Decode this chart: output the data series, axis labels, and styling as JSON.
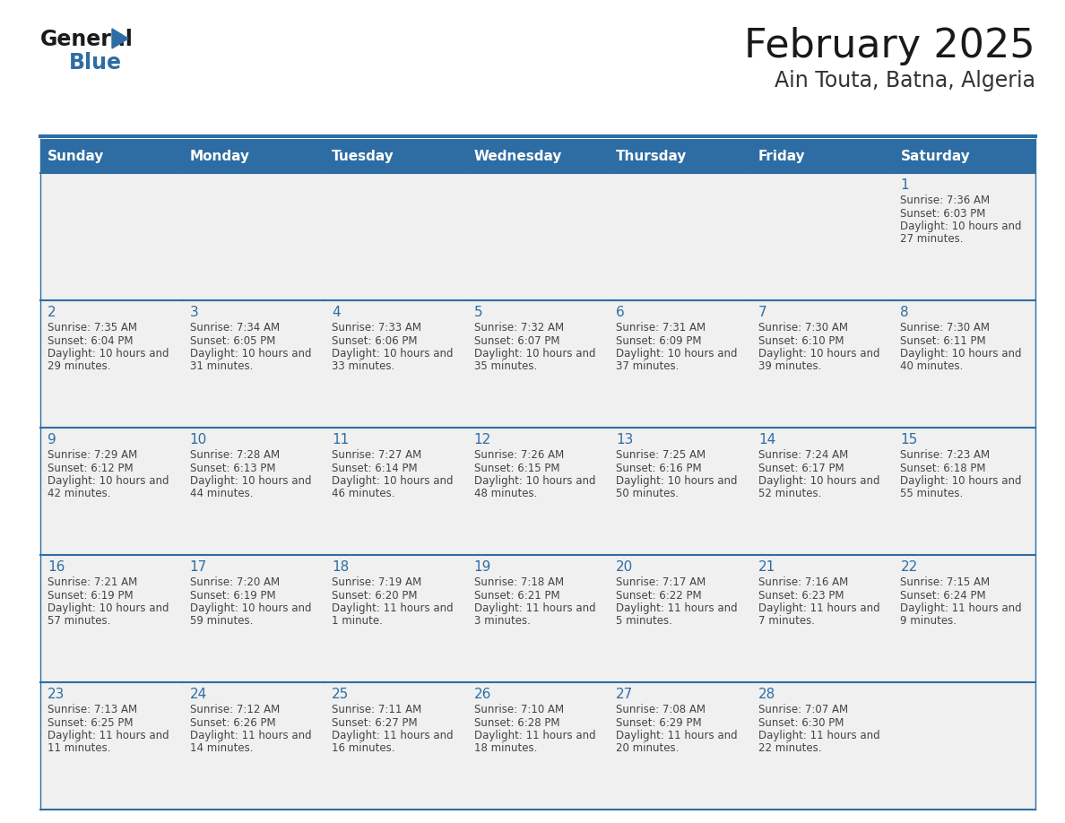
{
  "title": "February 2025",
  "subtitle": "Ain Touta, Batna, Algeria",
  "days_of_week": [
    "Sunday",
    "Monday",
    "Tuesday",
    "Wednesday",
    "Thursday",
    "Friday",
    "Saturday"
  ],
  "header_bg": "#2E6DA4",
  "header_text_color": "#FFFFFF",
  "cell_bg": "#F0F0F0",
  "border_color": "#2E6DA4",
  "title_color": "#1a1a1a",
  "subtitle_color": "#333333",
  "day_number_color": "#2E6DA4",
  "cell_text_color": "#444444",
  "logo_general_color": "#1a1a1a",
  "logo_blue_color": "#2E6DA4",
  "calendar_data": [
    [
      null,
      null,
      null,
      null,
      null,
      null,
      {
        "day": 1,
        "sunrise": "7:36 AM",
        "sunset": "6:03 PM",
        "daylight": "10 hours and 27 minutes."
      }
    ],
    [
      {
        "day": 2,
        "sunrise": "7:35 AM",
        "sunset": "6:04 PM",
        "daylight": "10 hours and 29 minutes."
      },
      {
        "day": 3,
        "sunrise": "7:34 AM",
        "sunset": "6:05 PM",
        "daylight": "10 hours and 31 minutes."
      },
      {
        "day": 4,
        "sunrise": "7:33 AM",
        "sunset": "6:06 PM",
        "daylight": "10 hours and 33 minutes."
      },
      {
        "day": 5,
        "sunrise": "7:32 AM",
        "sunset": "6:07 PM",
        "daylight": "10 hours and 35 minutes."
      },
      {
        "day": 6,
        "sunrise": "7:31 AM",
        "sunset": "6:09 PM",
        "daylight": "10 hours and 37 minutes."
      },
      {
        "day": 7,
        "sunrise": "7:30 AM",
        "sunset": "6:10 PM",
        "daylight": "10 hours and 39 minutes."
      },
      {
        "day": 8,
        "sunrise": "7:30 AM",
        "sunset": "6:11 PM",
        "daylight": "10 hours and 40 minutes."
      }
    ],
    [
      {
        "day": 9,
        "sunrise": "7:29 AM",
        "sunset": "6:12 PM",
        "daylight": "10 hours and 42 minutes."
      },
      {
        "day": 10,
        "sunrise": "7:28 AM",
        "sunset": "6:13 PM",
        "daylight": "10 hours and 44 minutes."
      },
      {
        "day": 11,
        "sunrise": "7:27 AM",
        "sunset": "6:14 PM",
        "daylight": "10 hours and 46 minutes."
      },
      {
        "day": 12,
        "sunrise": "7:26 AM",
        "sunset": "6:15 PM",
        "daylight": "10 hours and 48 minutes."
      },
      {
        "day": 13,
        "sunrise": "7:25 AM",
        "sunset": "6:16 PM",
        "daylight": "10 hours and 50 minutes."
      },
      {
        "day": 14,
        "sunrise": "7:24 AM",
        "sunset": "6:17 PM",
        "daylight": "10 hours and 52 minutes."
      },
      {
        "day": 15,
        "sunrise": "7:23 AM",
        "sunset": "6:18 PM",
        "daylight": "10 hours and 55 minutes."
      }
    ],
    [
      {
        "day": 16,
        "sunrise": "7:21 AM",
        "sunset": "6:19 PM",
        "daylight": "10 hours and 57 minutes."
      },
      {
        "day": 17,
        "sunrise": "7:20 AM",
        "sunset": "6:19 PM",
        "daylight": "10 hours and 59 minutes."
      },
      {
        "day": 18,
        "sunrise": "7:19 AM",
        "sunset": "6:20 PM",
        "daylight": "11 hours and 1 minute."
      },
      {
        "day": 19,
        "sunrise": "7:18 AM",
        "sunset": "6:21 PM",
        "daylight": "11 hours and 3 minutes."
      },
      {
        "day": 20,
        "sunrise": "7:17 AM",
        "sunset": "6:22 PM",
        "daylight": "11 hours and 5 minutes."
      },
      {
        "day": 21,
        "sunrise": "7:16 AM",
        "sunset": "6:23 PM",
        "daylight": "11 hours and 7 minutes."
      },
      {
        "day": 22,
        "sunrise": "7:15 AM",
        "sunset": "6:24 PM",
        "daylight": "11 hours and 9 minutes."
      }
    ],
    [
      {
        "day": 23,
        "sunrise": "7:13 AM",
        "sunset": "6:25 PM",
        "daylight": "11 hours and 11 minutes."
      },
      {
        "day": 24,
        "sunrise": "7:12 AM",
        "sunset": "6:26 PM",
        "daylight": "11 hours and 14 minutes."
      },
      {
        "day": 25,
        "sunrise": "7:11 AM",
        "sunset": "6:27 PM",
        "daylight": "11 hours and 16 minutes."
      },
      {
        "day": 26,
        "sunrise": "7:10 AM",
        "sunset": "6:28 PM",
        "daylight": "11 hours and 18 minutes."
      },
      {
        "day": 27,
        "sunrise": "7:08 AM",
        "sunset": "6:29 PM",
        "daylight": "11 hours and 20 minutes."
      },
      {
        "day": 28,
        "sunrise": "7:07 AM",
        "sunset": "6:30 PM",
        "daylight": "11 hours and 22 minutes."
      },
      null
    ]
  ]
}
